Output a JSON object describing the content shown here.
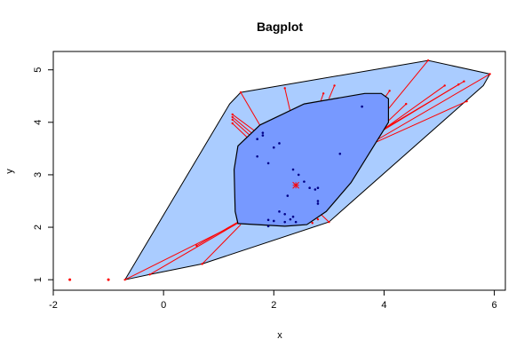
{
  "chart_data": {
    "type": "scatter",
    "subtype": "bagplot",
    "title": "Bagplot",
    "xlabel": "x",
    "ylabel": "y",
    "xlim": [
      -2,
      6.2
    ],
    "ylim": [
      0.8,
      5.35
    ],
    "xticks": [
      "-2",
      "0",
      "2",
      "4",
      "6"
    ],
    "xtick_values": [
      -2,
      0,
      2,
      4,
      6
    ],
    "yticks": [
      "1",
      "2",
      "3",
      "4",
      "5"
    ],
    "ytick_values": [
      1,
      2,
      3,
      4,
      5
    ],
    "grid": false,
    "colors": {
      "fence_fill": "#aaccff",
      "bag_fill": "#7799ff",
      "whisker": "#ff0000",
      "inner_point": "#000088",
      "outlier": "#ff0000",
      "center": "#ff0000",
      "outline": "#000000"
    },
    "bag_polygon": [
      [
        1.35,
        3.55
      ],
      [
        1.75,
        3.95
      ],
      [
        2.55,
        4.35
      ],
      [
        3.65,
        4.55
      ],
      [
        3.95,
        4.55
      ],
      [
        4.08,
        4.45
      ],
      [
        4.08,
        4.0
      ],
      [
        3.4,
        2.85
      ],
      [
        2.95,
        2.3
      ],
      [
        2.6,
        2.05
      ],
      [
        2.2,
        2.02
      ],
      [
        1.35,
        2.07
      ],
      [
        1.3,
        2.3
      ],
      [
        1.28,
        3.1
      ]
    ],
    "loop_polygon": [
      [
        -0.7,
        1.0
      ],
      [
        1.2,
        4.35
      ],
      [
        1.4,
        4.57
      ],
      [
        4.8,
        5.18
      ],
      [
        5.92,
        4.92
      ],
      [
        5.8,
        4.7
      ],
      [
        3.0,
        2.1
      ],
      [
        0.7,
        1.3
      ],
      [
        -0.25,
        1.1
      ]
    ],
    "center": [
      2.4,
      2.8
    ],
    "inner_points": [
      [
        3.6,
        4.3
      ],
      [
        1.8,
        3.75
      ],
      [
        1.8,
        3.8
      ],
      [
        1.7,
        3.68
      ],
      [
        2.1,
        3.6
      ],
      [
        2.0,
        3.52
      ],
      [
        1.7,
        3.35
      ],
      [
        1.9,
        3.22
      ],
      [
        3.2,
        3.4
      ],
      [
        2.35,
        3.1
      ],
      [
        2.45,
        3.0
      ],
      [
        2.55,
        2.87
      ],
      [
        2.65,
        2.75
      ],
      [
        2.75,
        2.72
      ],
      [
        2.8,
        2.75
      ],
      [
        2.25,
        2.6
      ],
      [
        2.8,
        2.5
      ],
      [
        2.8,
        2.45
      ],
      [
        2.1,
        2.3
      ],
      [
        2.2,
        2.25
      ],
      [
        2.35,
        2.2
      ],
      [
        1.9,
        2.14
      ],
      [
        2.0,
        2.12
      ],
      [
        2.2,
        2.1
      ],
      [
        2.3,
        2.15
      ],
      [
        2.4,
        2.1
      ],
      [
        1.9,
        2.02
      ]
    ],
    "outer_points": [
      [
        1.4,
        4.57
      ],
      [
        1.25,
        4.15
      ],
      [
        1.25,
        4.1
      ],
      [
        1.25,
        4.05
      ],
      [
        1.25,
        3.98
      ],
      [
        2.2,
        4.65
      ],
      [
        2.9,
        4.55
      ],
      [
        3.1,
        4.7
      ],
      [
        4.1,
        4.6
      ],
      [
        4.4,
        4.35
      ],
      [
        5.1,
        4.7
      ],
      [
        5.35,
        4.72
      ],
      [
        5.45,
        4.78
      ],
      [
        4.8,
        5.18
      ],
      [
        5.92,
        4.92
      ],
      [
        5.5,
        4.4
      ],
      [
        2.8,
        2.15
      ],
      [
        2.7,
        2.08
      ],
      [
        3.0,
        2.1
      ],
      [
        0.6,
        1.65
      ],
      [
        0.7,
        1.3
      ],
      [
        -0.25,
        1.1
      ],
      [
        -0.7,
        1.0
      ]
    ],
    "outliers": [
      [
        -1.7,
        1.0
      ],
      [
        -1.0,
        1.0
      ]
    ],
    "whiskers": [
      [
        1.4,
        4.57,
        1.8,
        3.85
      ],
      [
        1.25,
        4.15,
        1.7,
        3.8
      ],
      [
        1.25,
        4.1,
        1.65,
        3.75
      ],
      [
        1.25,
        4.05,
        1.6,
        3.72
      ],
      [
        1.25,
        3.98,
        1.55,
        3.68
      ],
      [
        2.2,
        4.65,
        2.3,
        4.2
      ],
      [
        2.9,
        4.55,
        2.85,
        4.4
      ],
      [
        3.1,
        4.7,
        3.0,
        4.45
      ],
      [
        4.1,
        4.6,
        4.0,
        4.45
      ],
      [
        4.4,
        4.35,
        3.9,
        3.85
      ],
      [
        5.1,
        4.7,
        3.7,
        3.65
      ],
      [
        5.35,
        4.72,
        3.75,
        3.7
      ],
      [
        5.45,
        4.78,
        3.8,
        3.75
      ],
      [
        4.8,
        5.18,
        3.8,
        3.9
      ],
      [
        5.92,
        4.92,
        3.6,
        3.5
      ],
      [
        5.5,
        4.4,
        3.7,
        3.55
      ],
      [
        2.8,
        2.15,
        2.6,
        2.45
      ],
      [
        2.7,
        2.08,
        2.55,
        2.35
      ],
      [
        3.0,
        2.1,
        2.7,
        2.4
      ],
      [
        0.6,
        1.65,
        1.35,
        2.1
      ],
      [
        0.7,
        1.3,
        1.4,
        2.05
      ],
      [
        -0.25,
        1.1,
        1.35,
        2.08
      ],
      [
        -0.7,
        1.0,
        1.3,
        2.05
      ]
    ]
  }
}
